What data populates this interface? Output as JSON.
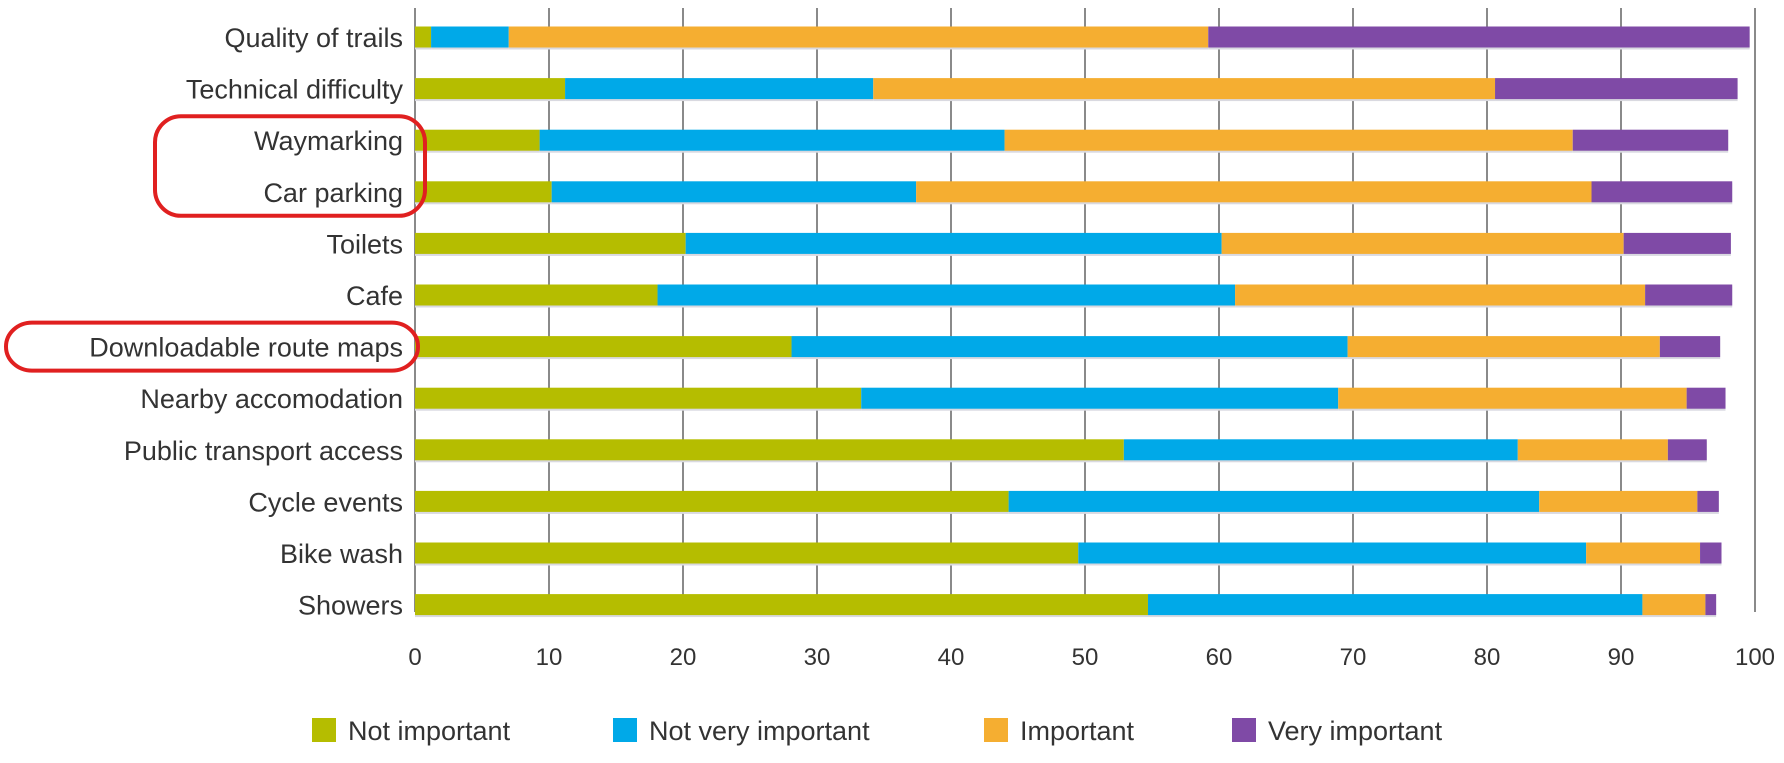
{
  "chart_data": {
    "type": "bar",
    "orientation": "horizontal",
    "stacked": true,
    "title": "",
    "xlabel": "",
    "ylabel": "",
    "xlim": [
      0,
      100
    ],
    "x_ticks": [
      0,
      10,
      20,
      30,
      40,
      50,
      60,
      70,
      80,
      90,
      100
    ],
    "grid": true,
    "legend_position": "bottom",
    "categories": [
      "Quality of trails",
      "Technical difficulty",
      "Waymarking",
      "Car parking",
      "Toilets",
      "Cafe",
      "Downloadable route maps",
      "Nearby accomodation",
      "Public transport access",
      "Cycle events",
      "Bike wash",
      "Showers"
    ],
    "series": [
      {
        "name": "Not important",
        "color": "#b5bd00",
        "values": [
          1.2,
          11.2,
          9.3,
          10.2,
          20.2,
          18.1,
          28.1,
          33.3,
          52.9,
          44.3,
          49.5,
          54.7
        ]
      },
      {
        "name": "Not very important",
        "color": "#00a9e8",
        "values": [
          5.8,
          23.0,
          34.7,
          27.2,
          40.0,
          43.1,
          41.5,
          35.6,
          29.4,
          39.6,
          37.9,
          36.9
        ]
      },
      {
        "name": "Important",
        "color": "#f5ae31",
        "values": [
          52.2,
          46.4,
          42.4,
          50.4,
          30.0,
          30.6,
          23.3,
          26.0,
          11.2,
          11.8,
          8.5,
          4.7
        ]
      },
      {
        "name": "Very important",
        "color": "#7f4aa6",
        "values": [
          40.4,
          18.1,
          11.6,
          10.5,
          8.0,
          6.5,
          4.5,
          2.9,
          2.9,
          1.6,
          1.6,
          0.8
        ]
      }
    ],
    "highlighted_categories": [
      "Waymarking",
      "Car parking",
      "Downloadable route maps"
    ],
    "highlight_color": "#e02020"
  }
}
